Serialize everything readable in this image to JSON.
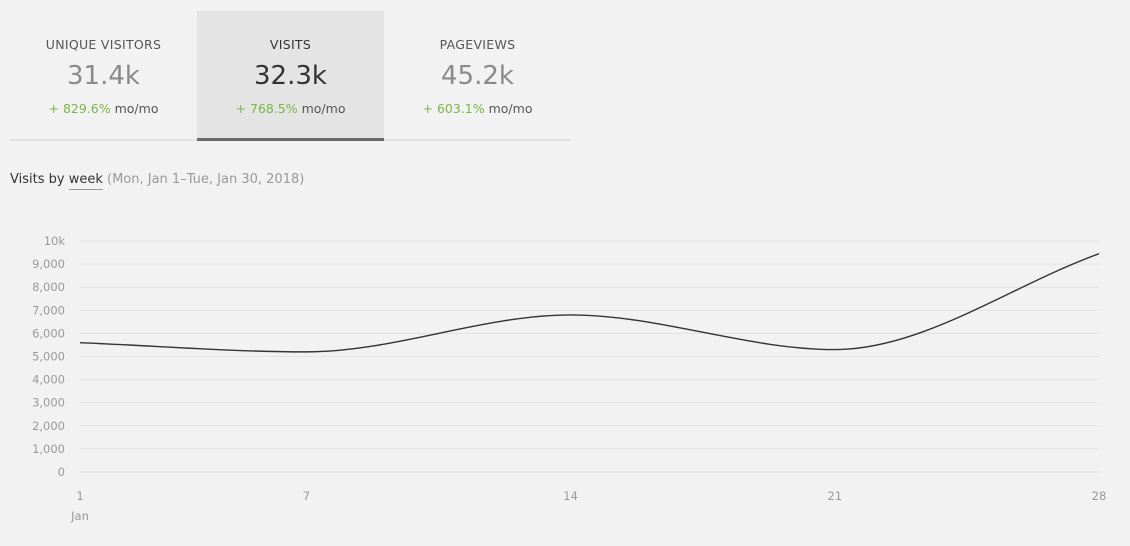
{
  "tabs": [
    {
      "label": "UNIQUE VISITORS",
      "value": "31.4k",
      "change": "+ 829.6%",
      "unit": "mo/mo"
    },
    {
      "label": "VISITS",
      "value": "32.3k",
      "change": "+ 768.5%",
      "unit": "mo/mo"
    },
    {
      "label": "PAGEVIEWS",
      "value": "45.2k",
      "change": "+ 603.1%",
      "unit": "mo/mo"
    }
  ],
  "active_tab": "VISITS",
  "subtitle": {
    "prefix": "Visits by",
    "period": "week",
    "range": "(Mon, Jan 1–Tue, Jan 30, 2018)"
  },
  "colors": {
    "positive_change": "#7ab648",
    "line": "#333333",
    "grid": "#e2e2e2"
  },
  "chart_data": {
    "type": "line",
    "x": [
      1,
      7,
      14,
      21,
      28
    ],
    "x_tick_labels": [
      "1",
      "7",
      "14",
      "21",
      "28"
    ],
    "x_sublabel": "Jan",
    "y_tick_labels": [
      "0",
      "1,000",
      "2,000",
      "3,000",
      "4,000",
      "5,000",
      "6,000",
      "7,000",
      "8,000",
      "9,000",
      "10k"
    ],
    "ylim": [
      0,
      10000
    ],
    "grid": true,
    "series": [
      {
        "values": [
          5600,
          5200,
          6800,
          5300,
          9450
        ]
      }
    ]
  }
}
